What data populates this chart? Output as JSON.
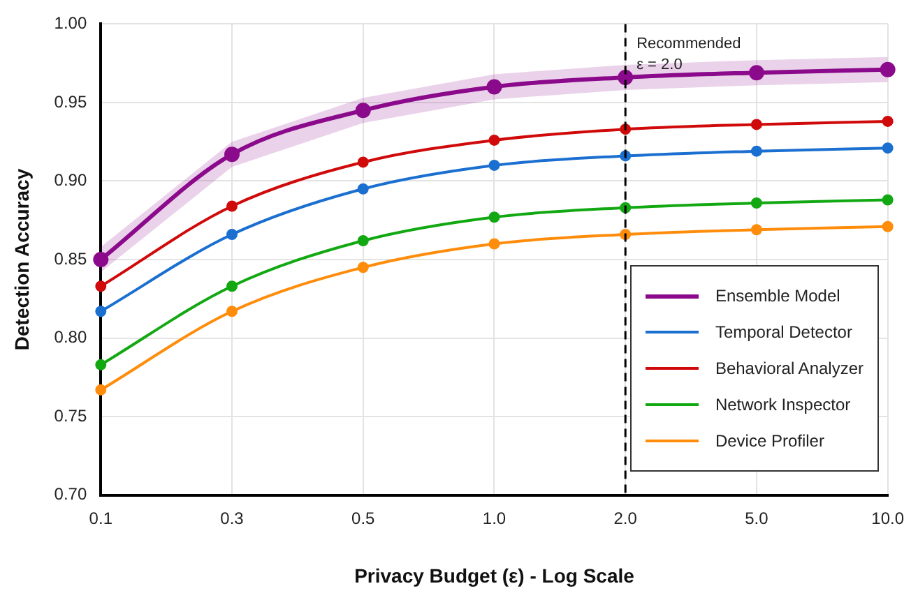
{
  "chart_data": {
    "type": "line",
    "xlabel": "Privacy Budget (ε) - Log Scale",
    "ylabel": "Detection Accuracy",
    "categories": [
      "0.1",
      "0.3",
      "0.5",
      "1.0",
      "2.0",
      "5.0",
      "10.0"
    ],
    "ylim": [
      0.7,
      1.0
    ],
    "yticks": [
      {
        "value": 0.7,
        "label": "0.70"
      },
      0.75,
      {
        "value": 0.8,
        "label": "0.80"
      },
      0.85,
      {
        "value": 0.9,
        "label": "0.90"
      },
      0.95,
      {
        "value": 1.0,
        "label": "1.00"
      }
    ],
    "series": [
      {
        "name": "Ensemble Model",
        "color": "#8b0a8b",
        "values": [
          0.85,
          0.917,
          0.945,
          0.96,
          0.966,
          0.969,
          0.971
        ],
        "lower": [
          0.842,
          0.909,
          0.937,
          0.952,
          0.958,
          0.961,
          0.963
        ],
        "upper": [
          0.858,
          0.925,
          0.953,
          0.968,
          0.974,
          0.977,
          0.979
        ]
      },
      {
        "name": "Temporal Detector",
        "color": "#1a6fd0",
        "values": [
          0.817,
          0.866,
          0.895,
          0.91,
          0.916,
          0.919,
          0.921
        ]
      },
      {
        "name": "Behavioral Analyzer",
        "color": "#d00a0a",
        "values": [
          0.833,
          0.884,
          0.912,
          0.926,
          0.933,
          0.936,
          0.938
        ]
      },
      {
        "name": "Network Inspector",
        "color": "#12a812",
        "values": [
          0.783,
          0.833,
          0.862,
          0.877,
          0.883,
          0.886,
          0.888
        ]
      },
      {
        "name": "Device Profiler",
        "color": "#ff8c0a",
        "values": [
          0.767,
          0.817,
          0.845,
          0.86,
          0.866,
          0.869,
          0.871
        ]
      }
    ],
    "ref_lines": [
      {
        "axis": "x",
        "value": "2.0",
        "label": "Recommended\nε = 2.0",
        "color": "#000000",
        "line_style": "dashed"
      }
    ],
    "grid": true,
    "legend": "right",
    "marker": "circle",
    "line_style": "solid"
  }
}
